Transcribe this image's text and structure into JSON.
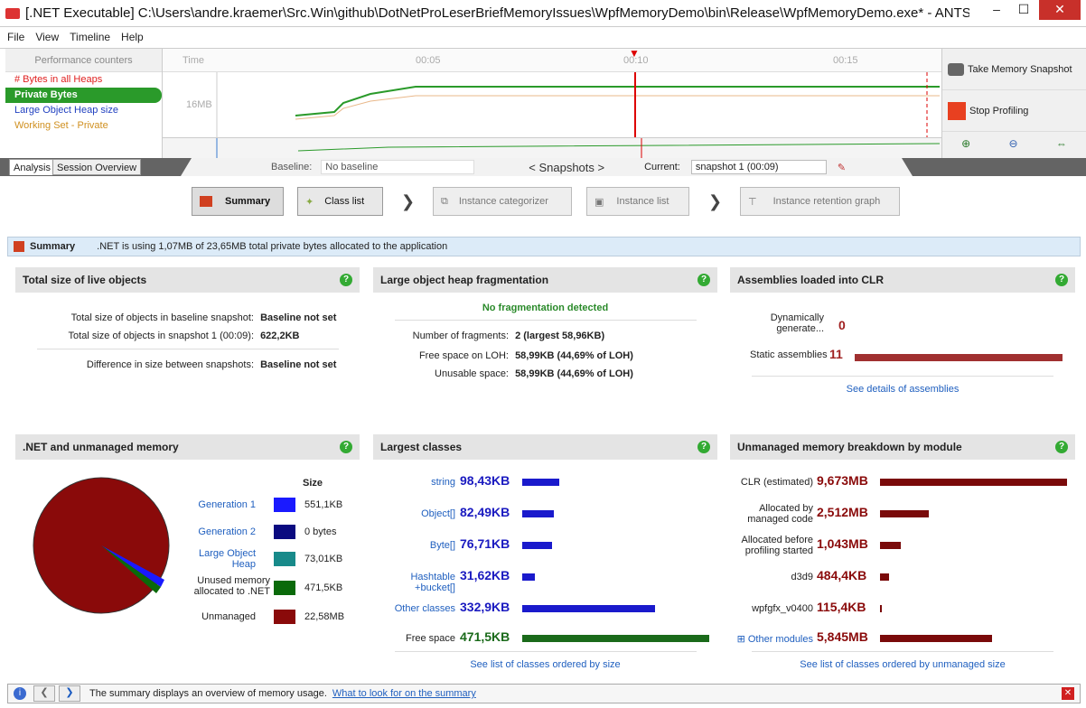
{
  "window": {
    "title": "[.NET Executable] C:\\Users\\andre.kraemer\\Src.Win\\github\\DotNetProLeserBriefMemoryIssues\\WpfMemoryDemo\\bin\\Release\\WpfMemoryDemo.exe* - ANTS M...",
    "minimize": "–",
    "maximize": "☐",
    "close": "✕"
  },
  "menu": [
    "File",
    "View",
    "Timeline",
    "Help"
  ],
  "timeline": {
    "counters_header": "Performance counters",
    "counters": [
      {
        "label": "# Bytes in all Heaps",
        "color": "#e02020"
      },
      {
        "label": "Private Bytes",
        "color": "#ffffff",
        "selected": true
      },
      {
        "label": "Large Object Heap size",
        "color": "#2040c0"
      },
      {
        "label": "Working Set - Private",
        "color": "#d09020"
      }
    ],
    "ruler_label": "Time",
    "ticks": [
      "00:05",
      "00:10",
      "00:15"
    ],
    "y_label": "16MB",
    "take_snapshot": "Take Memory Snapshot",
    "stop_profiling": "Stop Profiling"
  },
  "tabs": {
    "analysis": "Analysis",
    "session": "Session Overview"
  },
  "snapbar": {
    "baseline_label": "Baseline:",
    "baseline_value": "No baseline",
    "snapshots": "< Snapshots >",
    "current_label": "Current:",
    "current_value": "snapshot 1 (00:09)"
  },
  "nav": {
    "summary": "Summary",
    "class_list": "Class list",
    "instance_categorizer": "Instance categorizer",
    "instance_list": "Instance list",
    "retention": "Instance retention graph"
  },
  "summary_bar": {
    "title": "Summary",
    "text": ".NET is using 1,07MB of 23,65MB total private bytes allocated to the application"
  },
  "live": {
    "title": "Total size of live objects",
    "r1l": "Total size of objects in baseline snapshot:",
    "r1v": "Baseline not set",
    "r2l": "Total size of objects in snapshot 1 (00:09):",
    "r2v": "622,2KB",
    "r3l": "Difference in size between snapshots:",
    "r3v": "Baseline not set"
  },
  "loh": {
    "title": "Large object heap fragmentation",
    "status": "No fragmentation detected",
    "r1l": "Number of fragments:",
    "r1v": "2 (largest 58,96KB)",
    "r2l": "Free space on LOH:",
    "r2v": "58,99KB (44,69% of LOH)",
    "r3l": "Unusable space:",
    "r3v": "58,99KB (44,69% of LOH)"
  },
  "asm": {
    "title": "Assemblies loaded into CLR",
    "dyn_label": "Dynamically generate...",
    "dyn_value": "0",
    "static_label": "Static assemblies",
    "static_value": "11",
    "link": "See details of assemblies"
  },
  "mem": {
    "title": ".NET and unmanaged memory",
    "size_hdr": "Size",
    "rows": [
      {
        "label": "Generation 1",
        "value": "551,1KB",
        "color": "#1a1aff",
        "link": true
      },
      {
        "label": "Generation 2",
        "value": "0 bytes",
        "color": "#0a0a80",
        "link": true
      },
      {
        "label": "Large Object Heap",
        "value": "73,01KB",
        "color": "#188a8a",
        "link": true
      },
      {
        "label": "Unused memory allocated to .NET",
        "value": "471,5KB",
        "color": "#0a6a0a",
        "link": false
      },
      {
        "label": "Unmanaged",
        "value": "22,58MB",
        "color": "#8a0a0a",
        "link": false
      }
    ]
  },
  "classes": {
    "title": "Largest classes",
    "rows": [
      {
        "label": "string",
        "value": "98,43KB",
        "frac": 0.2
      },
      {
        "label": "Object[]",
        "value": "82,49KB",
        "frac": 0.17
      },
      {
        "label": "Byte[]",
        "value": "76,71KB",
        "frac": 0.16
      },
      {
        "label": "Hashtable +bucket[]",
        "value": "31,62KB",
        "frac": 0.07
      },
      {
        "label": "Other classes",
        "value": "332,9KB",
        "frac": 0.71
      },
      {
        "label": "Free space",
        "value": "471,5KB",
        "frac": 1.0
      }
    ],
    "link": "See list of classes ordered by size"
  },
  "unmanaged": {
    "title": "Unmanaged memory breakdown by module",
    "rows": [
      {
        "label": "CLR (estimated)",
        "value": "9,673MB",
        "frac": 1.0
      },
      {
        "label": "Allocated by managed code",
        "value": "2,512MB",
        "frac": 0.26
      },
      {
        "label": "Allocated before profiling started",
        "value": "1,043MB",
        "frac": 0.11
      },
      {
        "label": "d3d9",
        "value": "484,4KB",
        "frac": 0.05
      },
      {
        "label": "wpfgfx_v0400",
        "value": "115,4KB",
        "frac": 0.012
      },
      {
        "label": "⊞ Other modules",
        "value": "5,845MB",
        "frac": 0.6
      }
    ],
    "link": "See list of classes ordered by unmanaged size"
  },
  "status": {
    "text": "The summary displays an overview of memory usage.",
    "link": "What to look for on the summary"
  }
}
